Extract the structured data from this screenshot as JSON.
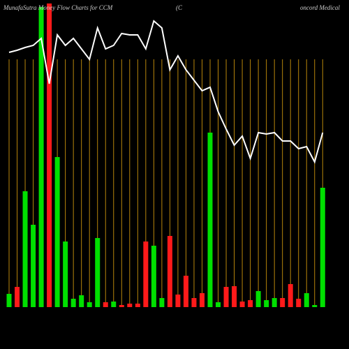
{
  "chart_data": {
    "type": "bar",
    "title": "MunafaSutra  Money Flow  Charts for CCM",
    "title_mid": "(C",
    "title_right": "oncord Medical",
    "ylim": [
      0,
      440
    ],
    "grid": true,
    "grid_color": "#b8860b",
    "line_color": "#ffffff",
    "values": [
      19,
      29,
      166,
      118,
      430,
      435,
      215,
      94,
      12,
      17,
      7,
      99,
      7,
      8,
      3,
      5,
      5,
      94,
      88,
      13,
      102,
      18,
      45,
      13,
      20,
      250,
      7,
      29,
      30,
      8,
      10,
      23,
      10,
      13,
      13,
      33,
      12,
      20,
      3,
      171
    ],
    "colors": [
      "#00e000",
      "#ff1a1a",
      "#00e000",
      "#00e000",
      "#00e000",
      "#ff1a1a",
      "#00e000",
      "#00e000",
      "#00e000",
      "#00e000",
      "#00e000",
      "#00e000",
      "#ff1a1a",
      "#00e000",
      "#ff1a1a",
      "#ff1a1a",
      "#ff1a1a",
      "#ff1a1a",
      "#00e000",
      "#00e000",
      "#ff1a1a",
      "#ff1a1a",
      "#ff1a1a",
      "#ff1a1a",
      "#ff1a1a",
      "#00e000",
      "#00e000",
      "#ff1a1a",
      "#ff1a1a",
      "#ff1a1a",
      "#ff1a1a",
      "#00e000",
      "#00e000",
      "#00e000",
      "#ff1a1a",
      "#ff1a1a",
      "#ff1a1a",
      "#00e000",
      "#00e000",
      "#00e000"
    ],
    "line_values": [
      365,
      368,
      372,
      375,
      385,
      320,
      390,
      375,
      385,
      370,
      355,
      400,
      370,
      375,
      392,
      390,
      390,
      370,
      410,
      400,
      340,
      360,
      340,
      325,
      310,
      315,
      280,
      255,
      232,
      245,
      213,
      250,
      248,
      250,
      238,
      238,
      227,
      230,
      208,
      250
    ]
  }
}
